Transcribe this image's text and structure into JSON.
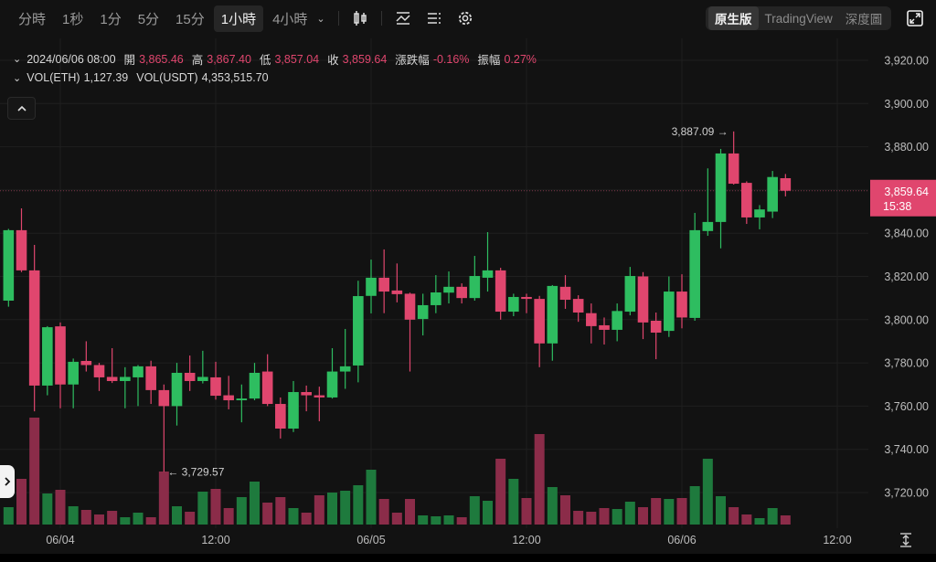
{
  "toolbar": {
    "timeframes": [
      {
        "label": "分時",
        "active": false
      },
      {
        "label": "1秒",
        "active": false
      },
      {
        "label": "1分",
        "active": false
      },
      {
        "label": "5分",
        "active": false
      },
      {
        "label": "15分",
        "active": false
      },
      {
        "label": "1小時",
        "active": true
      },
      {
        "label": "4小時",
        "active": false
      }
    ],
    "icons": [
      "chevron-down-icon",
      "candlestick-icon",
      "indicator-icon",
      "list-icon",
      "gear-icon",
      "fullscreen-icon"
    ],
    "views": [
      {
        "label": "原生版",
        "active": true
      },
      {
        "label": "TradingView",
        "active": false
      },
      {
        "label": "深度圖",
        "active": false
      }
    ]
  },
  "info": {
    "datetime": "2024/06/06 08:00",
    "open_label": "開",
    "open": "3,865.46",
    "high_label": "高",
    "high": "3,867.40",
    "low_label": "低",
    "low": "3,857.04",
    "close_label": "收",
    "close": "3,859.64",
    "change_label": "漲跌幅",
    "change": "-0.16%",
    "amplitude_label": "振幅",
    "amplitude": "0.27%",
    "vol_eth_label": "VOL(ETH)",
    "vol_eth": "1,127.39",
    "vol_usdt_label": "VOL(USDT)",
    "vol_usdt": "4,353,515.70"
  },
  "colors": {
    "up": "#2ebd60",
    "down": "#e0466e",
    "vol_up": "#1e7a3d",
    "vol_down": "#8b2c49",
    "background": "#121212",
    "grid": "#1f1f1f"
  },
  "chart_data": {
    "type": "candlestick",
    "interval": "1h",
    "ylim": [
      3705,
      3930
    ],
    "y_ticks": [
      "3,920.00",
      "3,900.00",
      "3,880.00",
      "3,860.00",
      "3,840.00",
      "3,820.00",
      "3,800.00",
      "3,780.00",
      "3,760.00",
      "3,740.00",
      "3,720.00"
    ],
    "y_tick_values": [
      3920,
      3900,
      3880,
      3860,
      3840,
      3820,
      3800,
      3780,
      3760,
      3740,
      3720
    ],
    "x_ticks": [
      {
        "label": "06/04",
        "time": "06/04 00:00"
      },
      {
        "label": "12:00",
        "time": "06/04 12:00"
      },
      {
        "label": "06/05",
        "time": "06/05 00:00"
      },
      {
        "label": "12:00",
        "time": "06/05 12:00"
      },
      {
        "label": "06/06",
        "time": "06/06 00:00"
      },
      {
        "label": "12:00",
        "time": "06/06 12:00"
      }
    ],
    "grid": true,
    "last_price": {
      "value": 3859.64,
      "label": "3,859.64",
      "countdown": "15:38"
    },
    "annotations": [
      {
        "text": "3,887.09 →",
        "time": "06/06 04:00",
        "value": 3887.09,
        "kind": "high"
      },
      {
        "text": "← 3,729.57",
        "time": "06/04 08:00",
        "value": 3729.57,
        "kind": "low"
      }
    ],
    "columns": [
      "time",
      "open",
      "high",
      "low",
      "close",
      "volume_relative"
    ],
    "candles": [
      [
        "06/03 20:00",
        3808.8,
        3842,
        3806,
        3841.4,
        19
      ],
      [
        "06/03 21:00",
        3841.4,
        3851.5,
        3822,
        3822.8,
        50
      ],
      [
        "06/03 22:00",
        3822.8,
        3834.6,
        3757.6,
        3769.5,
        117
      ],
      [
        "06/03 23:00",
        3769.5,
        3797,
        3765,
        3796.5,
        34
      ],
      [
        "06/04 00:00",
        3796.9,
        3798.7,
        3759,
        3770,
        38
      ],
      [
        "06/04 01:00",
        3770,
        3782,
        3759,
        3780.5,
        20
      ],
      [
        "06/04 02:00",
        3780.9,
        3790,
        3776,
        3779,
        16
      ],
      [
        "06/04 03:00",
        3779,
        3780,
        3767,
        3773.3,
        11
      ],
      [
        "06/04 04:00",
        3773.5,
        3786.8,
        3770.7,
        3771.6,
        15
      ],
      [
        "06/04 05:00",
        3771.6,
        3778,
        3759,
        3773.5,
        8
      ],
      [
        "06/04 06:00",
        3773.3,
        3779,
        3760,
        3778.4,
        13
      ],
      [
        "06/04 07:00",
        3778.4,
        3781,
        3761,
        3767.4,
        8
      ],
      [
        "06/04 08:00",
        3767.4,
        3770,
        3729.57,
        3760,
        58
      ],
      [
        "06/04 09:00",
        3760,
        3780,
        3751,
        3775.4,
        20
      ],
      [
        "06/04 10:00",
        3775.4,
        3783.4,
        3767,
        3771.6,
        14
      ],
      [
        "06/04 11:00",
        3771.6,
        3785.6,
        3770.5,
        3773.5,
        36
      ],
      [
        "06/04 12:00",
        3773.3,
        3780.5,
        3763,
        3764.8,
        39
      ],
      [
        "06/04 13:00",
        3765,
        3774,
        3758.5,
        3762.7,
        18
      ],
      [
        "06/04 14:00",
        3762.7,
        3770,
        3752.5,
        3763.5,
        30
      ],
      [
        "06/04 15:00",
        3763.5,
        3780,
        3762.7,
        3775.4,
        47
      ],
      [
        "06/04 16:00",
        3776,
        3784,
        3760,
        3761,
        24
      ],
      [
        "06/04 17:00",
        3761,
        3764,
        3745,
        3749.6,
        30
      ],
      [
        "06/04 18:00",
        3749.6,
        3771.6,
        3748,
        3766.5,
        18
      ],
      [
        "06/04 19:00",
        3766.5,
        3769.5,
        3757.6,
        3765,
        13
      ],
      [
        "06/04 20:00",
        3765,
        3769,
        3753,
        3764,
        32
      ],
      [
        "06/04 21:00",
        3764,
        3786.8,
        3763.5,
        3776,
        35
      ],
      [
        "06/04 22:00",
        3776,
        3795.7,
        3768,
        3778.4,
        37
      ],
      [
        "06/04 23:00",
        3778.8,
        3818,
        3771,
        3810.9,
        43
      ],
      [
        "06/05 00:00",
        3811,
        3827.8,
        3802.9,
        3819.4,
        60
      ],
      [
        "06/05 01:00",
        3819.4,
        3832.5,
        3803,
        3813,
        28
      ],
      [
        "06/05 02:00",
        3813.5,
        3826,
        3808,
        3811.8,
        13
      ],
      [
        "06/05 03:00",
        3812,
        3812.5,
        3776,
        3800,
        28
      ],
      [
        "06/05 04:00",
        3800.3,
        3812,
        3792.7,
        3806.7,
        10
      ],
      [
        "06/05 05:00",
        3806.7,
        3820.6,
        3803,
        3812.6,
        9
      ],
      [
        "06/05 06:00",
        3812.5,
        3822.3,
        3807.5,
        3815.2,
        10
      ],
      [
        "06/05 07:00",
        3815.2,
        3816.8,
        3807.5,
        3810,
        8
      ],
      [
        "06/05 08:00",
        3810,
        3829.5,
        3808.8,
        3820.2,
        31
      ],
      [
        "06/05 09:00",
        3819.4,
        3840.5,
        3813,
        3822.8,
        26
      ],
      [
        "06/05 10:00",
        3822.8,
        3824,
        3800,
        3803.7,
        72
      ],
      [
        "06/05 11:00",
        3803.7,
        3812,
        3801.6,
        3810.5,
        50
      ],
      [
        "06/05 12:00",
        3810.5,
        3812,
        3803,
        3809.6,
        29
      ],
      [
        "06/05 13:00",
        3809.6,
        3811,
        3778,
        3789,
        99
      ],
      [
        "06/05 14:00",
        3789,
        3816,
        3781,
        3815.6,
        41
      ],
      [
        "06/05 15:00",
        3815.2,
        3820.6,
        3805,
        3809.2,
        32
      ],
      [
        "06/05 16:00",
        3809.6,
        3811.3,
        3799,
        3803.3,
        15
      ],
      [
        "06/05 17:00",
        3803,
        3807.5,
        3789,
        3797,
        14
      ],
      [
        "06/05 18:00",
        3797.4,
        3801,
        3788.5,
        3795.3,
        18
      ],
      [
        "06/05 19:00",
        3795.3,
        3807.5,
        3790,
        3804,
        17
      ],
      [
        "06/05 20:00",
        3803.7,
        3824.4,
        3802,
        3820.2,
        25
      ],
      [
        "06/05 21:00",
        3820,
        3822,
        3791,
        3798.7,
        19
      ],
      [
        "06/05 22:00",
        3799.5,
        3803.3,
        3781.7,
        3794,
        29
      ],
      [
        "06/05 23:00",
        3794.8,
        3820,
        3792,
        3813,
        28
      ],
      [
        "06/06 00:00",
        3813,
        3821,
        3796,
        3801,
        29
      ],
      [
        "06/06 01:00",
        3800.8,
        3849.4,
        3799.5,
        3841.4,
        42
      ],
      [
        "06/06 02:00",
        3841,
        3870,
        3838.8,
        3845.2,
        72
      ],
      [
        "06/06 03:00",
        3845.2,
        3879,
        3833,
        3876.9,
        31
      ],
      [
        "06/06 04:00",
        3876.9,
        3887.09,
        3862.5,
        3862.9,
        19
      ],
      [
        "06/06 05:00",
        3863.3,
        3864,
        3844.3,
        3847.3,
        11
      ],
      [
        "06/06 06:00",
        3847.3,
        3853,
        3841.8,
        3851,
        7
      ],
      [
        "06/06 07:00",
        3850,
        3868.8,
        3847,
        3866,
        18
      ],
      [
        "06/06 08:00",
        3865.46,
        3867.4,
        3857.04,
        3859.64,
        10
      ]
    ]
  }
}
